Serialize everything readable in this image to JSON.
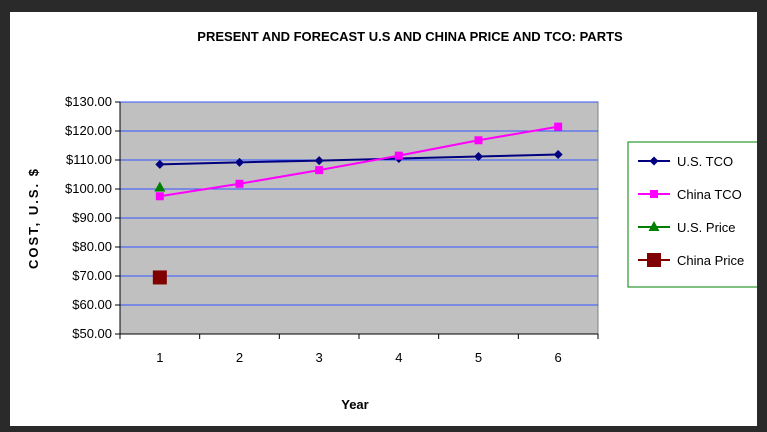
{
  "chart_data": {
    "type": "line",
    "title": "PRESENT AND FORECAST  U.S AND CHINA PRICE AND TCO: PARTS",
    "xlabel": "Year",
    "ylabel": "COST, U.S. $",
    "x": [
      1,
      2,
      3,
      4,
      5,
      6
    ],
    "x_tick_labels": [
      "1",
      "2",
      "3",
      "4",
      "5",
      "6"
    ],
    "y_tick_labels": [
      "$50.00",
      "$60.00",
      "$70.00",
      "$80.00",
      "$90.00",
      "$100.00",
      "$110.00",
      "$120.00",
      "$130.00"
    ],
    "ylim": [
      50,
      130
    ],
    "y_ticks": [
      50,
      60,
      70,
      80,
      90,
      100,
      110,
      120,
      130
    ],
    "grid": true,
    "legend_position": "right",
    "plot_background": "#c0c0c0",
    "gridline_color": "#3355ff",
    "series": [
      {
        "name": "U.S. TCO",
        "color": "#000080",
        "marker": "diamond",
        "x": [
          1,
          2,
          3,
          4,
          5,
          6
        ],
        "values": [
          108.5,
          109.2,
          109.8,
          110.5,
          111.2,
          111.9
        ]
      },
      {
        "name": "China TCO",
        "color": "#ff00ff",
        "marker": "square",
        "x": [
          1,
          2,
          3,
          4,
          5,
          6
        ],
        "values": [
          97.5,
          101.8,
          106.5,
          111.5,
          116.8,
          121.5
        ]
      },
      {
        "name": "U.S. Price",
        "color": "#008000",
        "marker": "triangle",
        "x": [
          1
        ],
        "values": [
          100.5
        ]
      },
      {
        "name": "China Price",
        "color": "#800000",
        "marker": "bigsquare",
        "x": [
          1
        ],
        "values": [
          69.5
        ]
      }
    ]
  }
}
